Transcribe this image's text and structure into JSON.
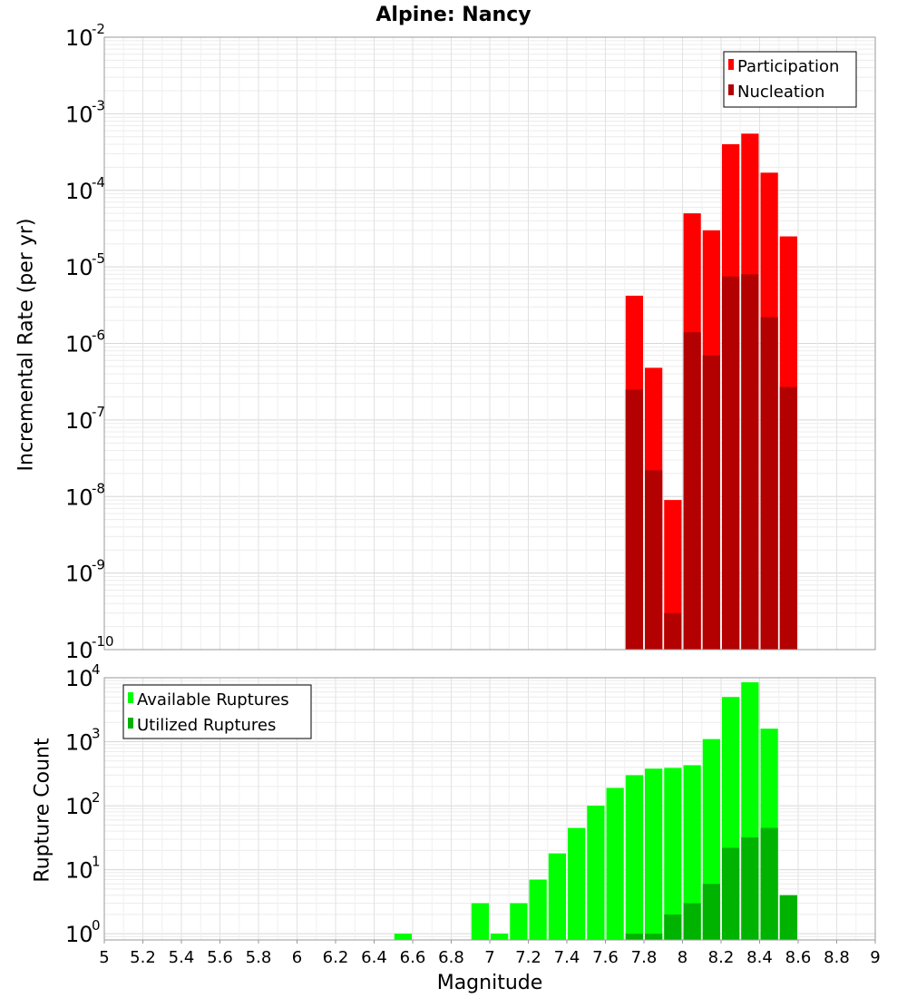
{
  "title": "Alpine: Nancy",
  "chart_data": [
    {
      "id": "rates",
      "type": "bar",
      "scale": "log",
      "ylabel": "Incremental Rate (per yr)",
      "ylim": [
        1e-10,
        0.01
      ],
      "y_ticks": [
        {
          "base": "10",
          "exp": "-10"
        },
        {
          "base": "10",
          "exp": "-9"
        },
        {
          "base": "10",
          "exp": "-8"
        },
        {
          "base": "10",
          "exp": "-7"
        },
        {
          "base": "10",
          "exp": "-6"
        },
        {
          "base": "10",
          "exp": "-5"
        },
        {
          "base": "10",
          "exp": "-4"
        },
        {
          "base": "10",
          "exp": "-3"
        },
        {
          "base": "10",
          "exp": "-2"
        }
      ],
      "xlim": [
        5,
        9
      ],
      "bin_width": 0.1,
      "x": [
        7.75,
        7.85,
        7.95,
        8.05,
        8.15,
        8.25,
        8.35,
        8.45,
        8.55
      ],
      "legend_position": "top-right",
      "grid": true,
      "series": [
        {
          "name": "Participation",
          "color": "#ff0000",
          "values": [
            4.2e-06,
            4.8e-07,
            9e-09,
            5e-05,
            3e-05,
            0.0004,
            0.00055,
            0.00017,
            2.5e-05
          ]
        },
        {
          "name": "Nucleation",
          "color": "#b30000",
          "values": [
            2.5e-07,
            2.2e-08,
            3e-10,
            1.4e-06,
            7e-07,
            7.5e-06,
            8e-06,
            2.2e-06,
            2.7e-07
          ]
        }
      ]
    },
    {
      "id": "counts",
      "type": "bar",
      "scale": "log",
      "ylabel": "Rupture Count",
      "xlabel": "Magnitude",
      "ylim": [
        0.8,
        10000
      ],
      "y_ticks": [
        {
          "base": "10",
          "exp": "0"
        },
        {
          "base": "10",
          "exp": "1"
        },
        {
          "base": "10",
          "exp": "2"
        },
        {
          "base": "10",
          "exp": "3"
        },
        {
          "base": "10",
          "exp": "4"
        }
      ],
      "xlim": [
        5,
        9
      ],
      "x_ticks": [
        "5",
        "5.2",
        "5.4",
        "5.6",
        "5.8",
        "6",
        "6.2",
        "6.4",
        "6.6",
        "6.8",
        "7",
        "7.2",
        "7.4",
        "7.6",
        "7.8",
        "8",
        "8.2",
        "8.4",
        "8.6",
        "8.8",
        "9"
      ],
      "bin_width": 0.1,
      "x": [
        6.55,
        6.95,
        7.05,
        7.15,
        7.25,
        7.35,
        7.45,
        7.55,
        7.65,
        7.75,
        7.85,
        7.95,
        8.05,
        8.15,
        8.25,
        8.35,
        8.45,
        8.55
      ],
      "legend_position": "top-left",
      "grid": true,
      "series": [
        {
          "name": "Available Ruptures",
          "color": "#00ff00",
          "values": [
            1,
            3,
            1,
            3,
            7,
            18,
            45,
            100,
            190,
            300,
            380,
            390,
            430,
            1100,
            5000,
            8500,
            1600,
            4
          ]
        },
        {
          "name": "Utilized Ruptures",
          "color": "#00b300",
          "values": [
            0,
            0,
            0,
            0,
            0,
            0,
            0,
            0,
            0,
            1,
            1,
            2,
            3,
            6,
            22,
            32,
            45,
            4
          ]
        }
      ]
    }
  ]
}
